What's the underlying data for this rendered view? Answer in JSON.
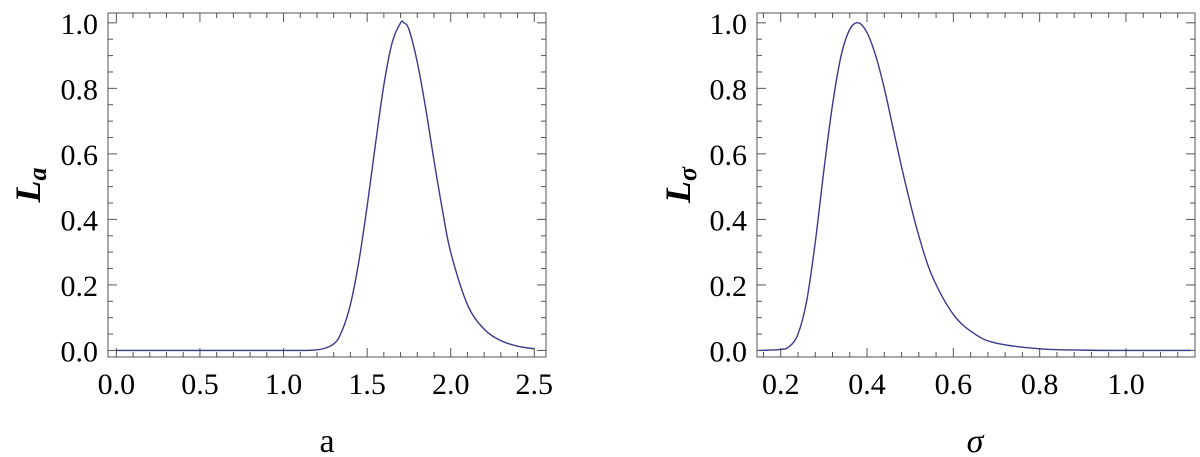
{
  "chart_data": [
    {
      "type": "line",
      "xlabel": "a",
      "ylabel": "L",
      "ylabel_subscript": "a",
      "xlim": [
        -0.05,
        2.57
      ],
      "ylim": [
        -0.02,
        1.03
      ],
      "xticks": [
        "0.0",
        "0.5",
        "1.0",
        "1.5",
        "2.0",
        "2.5"
      ],
      "yticks": [
        "0.0",
        "0.2",
        "0.4",
        "0.6",
        "0.8",
        "1.0"
      ],
      "series": [
        {
          "color": "#3a3a8c",
          "x": [
            0.0,
            0.5,
            1.0,
            1.2,
            1.3,
            1.35,
            1.4,
            1.45,
            1.5,
            1.55,
            1.6,
            1.65,
            1.7,
            1.72,
            1.75,
            1.8,
            1.85,
            1.9,
            1.95,
            2.0,
            2.1,
            2.2,
            2.3,
            2.4,
            2.5
          ],
          "y": [
            0.0,
            0.0,
            0.0,
            0.002,
            0.02,
            0.06,
            0.14,
            0.27,
            0.44,
            0.63,
            0.81,
            0.94,
            1.0,
            1.0,
            0.98,
            0.88,
            0.74,
            0.58,
            0.43,
            0.3,
            0.14,
            0.065,
            0.03,
            0.013,
            0.005
          ]
        }
      ]
    },
    {
      "type": "line",
      "xlabel": "σ",
      "ylabel": "L",
      "ylabel_subscript": "σ",
      "xlim": [
        0.145,
        1.16
      ],
      "ylim": [
        -0.02,
        1.03
      ],
      "xticks": [
        "0.2",
        "0.4",
        "0.6",
        "0.8",
        "1.0"
      ],
      "yticks": [
        "0.0",
        "0.2",
        "0.4",
        "0.6",
        "0.8",
        "1.0"
      ],
      "series": [
        {
          "color": "#3a3a8c",
          "x": [
            0.15,
            0.2,
            0.22,
            0.24,
            0.26,
            0.28,
            0.3,
            0.32,
            0.34,
            0.36,
            0.38,
            0.4,
            0.42,
            0.44,
            0.46,
            0.48,
            0.5,
            0.52,
            0.55,
            0.6,
            0.65,
            0.7,
            0.8,
            0.9,
            1.0,
            1.15
          ],
          "y": [
            0.0,
            0.003,
            0.012,
            0.05,
            0.15,
            0.33,
            0.55,
            0.75,
            0.9,
            0.98,
            1.0,
            0.97,
            0.9,
            0.8,
            0.68,
            0.56,
            0.45,
            0.35,
            0.23,
            0.11,
            0.05,
            0.022,
            0.005,
            0.001,
            0.0,
            0.0
          ]
        }
      ]
    }
  ]
}
